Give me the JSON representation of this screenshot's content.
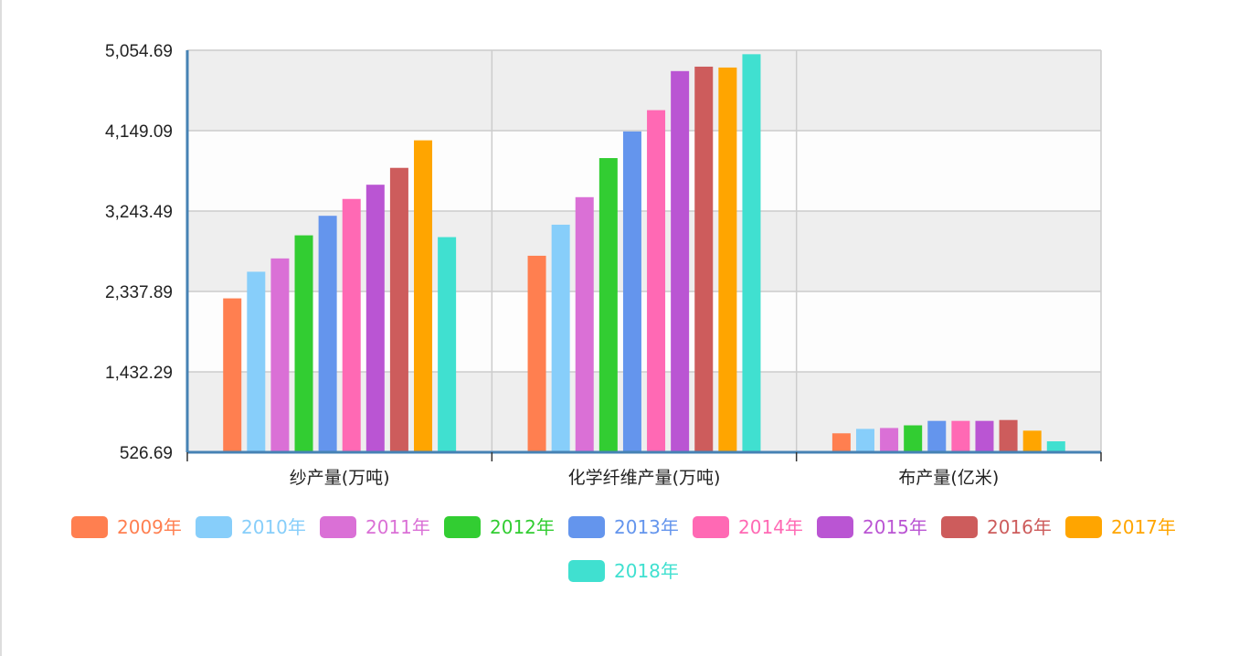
{
  "chart_data": {
    "type": "bar",
    "title": "",
    "xlabel": "",
    "ylabel": "",
    "categories": [
      "纱产量(万吨)",
      "化学纤维产量(万吨)",
      "布产量(亿米)"
    ],
    "ylim": [
      526.69,
      5054.69
    ],
    "yticks": [
      "526.69",
      "1,432.29",
      "2,337.89",
      "3,243.49",
      "4,149.09",
      "5,054.69"
    ],
    "ytick_values": [
      526.69,
      1432.29,
      2337.89,
      3243.49,
      4149.09,
      5054.69
    ],
    "grid": true,
    "legend_position": "bottom",
    "series": [
      {
        "name": "2009年",
        "color": "#ff7f50",
        "values": [
          2260,
          2740,
          740
        ]
      },
      {
        "name": "2010年",
        "color": "#87cefa",
        "values": [
          2560,
          3090,
          790
        ]
      },
      {
        "name": "2011年",
        "color": "#da70d6",
        "values": [
          2710,
          3400,
          800
        ]
      },
      {
        "name": "2012年",
        "color": "#32cd32",
        "values": [
          2970,
          3840,
          830
        ]
      },
      {
        "name": "2013年",
        "color": "#6495ed",
        "values": [
          3190,
          4140,
          880
        ]
      },
      {
        "name": "2014年",
        "color": "#ff69b4",
        "values": [
          3380,
          4380,
          880
        ]
      },
      {
        "name": "2015年",
        "color": "#ba55d3",
        "values": [
          3540,
          4820,
          880
        ]
      },
      {
        "name": "2016年",
        "color": "#cd5c5c",
        "values": [
          3730,
          4870,
          890
        ]
      },
      {
        "name": "2017年",
        "color": "#ffa500",
        "values": [
          4040,
          4860,
          770
        ]
      },
      {
        "name": "2018年",
        "color": "#40e0d0",
        "values": [
          2950,
          5010,
          650
        ]
      }
    ]
  }
}
